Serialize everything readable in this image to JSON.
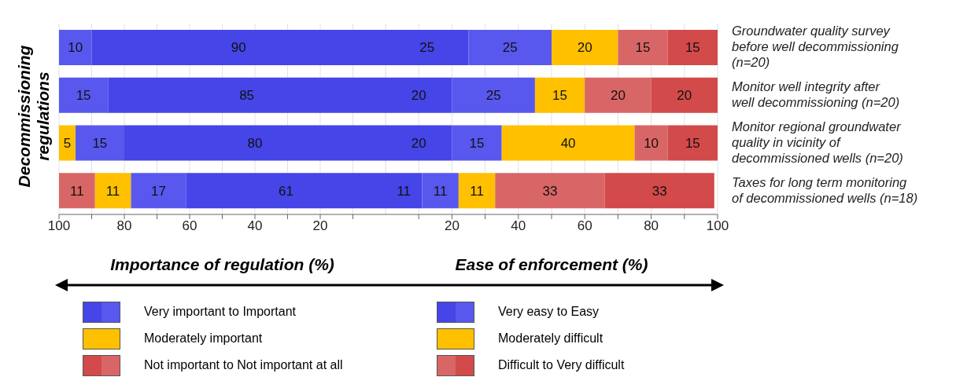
{
  "chart_data": [
    {
      "type": "bar",
      "orientation": "horizontal",
      "stacked": true,
      "xlabel": "Importance of regulation (%)",
      "ylabel": "Decommissioning regulations",
      "categories": [
        null,
        null,
        null,
        null
      ],
      "series": [
        {
          "color": "#4545e8",
          "values": [
            90,
            85,
            80,
            61
          ]
        },
        {
          "name": "Very important to Important",
          "color": "#5858ef",
          "values": [
            10,
            15,
            15,
            17
          ]
        },
        {
          "name": "Moderately important",
          "color": "#ffc000",
          "values": [
            null,
            null,
            5,
            11
          ]
        },
        {
          "name": "Not important to Not important at all",
          "color": "#d96666",
          "values": [
            null,
            null,
            null,
            11
          ]
        },
        {
          "color": "#d24a4a",
          "values": [
            null,
            null,
            null,
            null
          ]
        }
      ],
      "xlim": [
        100,
        0
      ],
      "xticks": [
        100,
        {
          "value": 90,
          "label": null
        },
        80,
        {
          "value": 70,
          "label": null
        },
        60,
        {
          "value": 50,
          "label": null
        },
        40,
        {
          "value": 30,
          "label": null
        },
        20,
        {
          "value": 10,
          "label": null
        }
      ],
      "grid": "x",
      "data_labels": true,
      "legend": "bottom",
      "tick_labels": "x"
    },
    {
      "type": "bar",
      "orientation": "horizontal",
      "stacked": true,
      "xlabel": "Ease of enforcement (%)",
      "categories": [
        "Groundwater quality survey before well decommissioning (n=20)",
        "Monitor well integrity after well decommissioning (n=20)",
        "Monitor regional groundwater quality in vicinity of decommissioned wells (n=20)",
        "Taxes for long term monitoring of decommissioned wells (n=18)"
      ],
      "series": [
        {
          "color": "#4545e8",
          "values": [
            25,
            20,
            20,
            11
          ]
        },
        {
          "name": "Very easy to Easy",
          "color": "#5858ef",
          "values": [
            25,
            25,
            15,
            11
          ]
        },
        {
          "name": "Moderately difficult",
          "color": "#ffc000",
          "values": [
            20,
            15,
            40,
            11
          ]
        },
        {
          "color": "#d96666",
          "values": [
            15,
            20,
            10,
            33
          ]
        },
        {
          "name": "Difficult to Very difficult",
          "color": "#d24a4a",
          "values": [
            15,
            20,
            15,
            33
          ]
        }
      ],
      "xlim": [
        0,
        100
      ],
      "xticks": [
        {
          "value": 10,
          "label": null
        },
        20,
        {
          "value": 30,
          "label": null
        },
        40,
        {
          "value": 50,
          "label": null
        },
        60,
        {
          "value": 70,
          "label": null
        },
        80,
        {
          "value": 90,
          "label": null
        },
        100
      ],
      "grid": "x",
      "data_labels": true,
      "legend": "bottom"
    }
  ]
}
